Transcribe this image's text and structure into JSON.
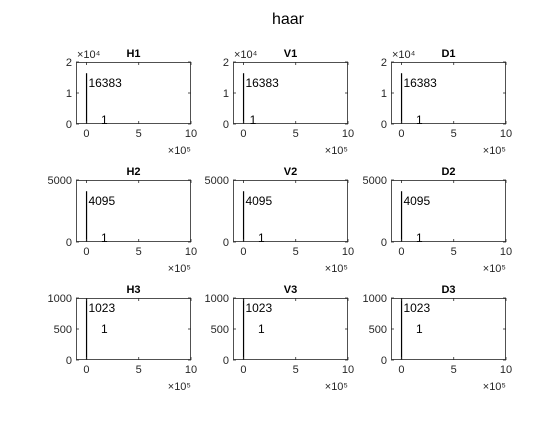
{
  "figure": {
    "title": "haar"
  },
  "style": {
    "axis_color": "#262626",
    "box_color": "#262626",
    "bar_color": "#000000",
    "background": "#ffffff"
  },
  "chart_data": [
    {
      "type": "bar",
      "title": "H1",
      "xlim": [
        -100000,
        1000000
      ],
      "ylim": [
        0,
        20000
      ],
      "xticks": [
        0,
        5,
        10
      ],
      "xexponent": "×10⁵",
      "yticks": [
        0,
        1,
        2
      ],
      "yexponent": "×10⁴",
      "bars": [
        {
          "x": 0,
          "value": 16383,
          "label": "16383"
        },
        {
          "x": 120000,
          "value": 1,
          "label": "1"
        }
      ]
    },
    {
      "type": "bar",
      "title": "V1",
      "xlim": [
        -100000,
        1000000
      ],
      "ylim": [
        0,
        20000
      ],
      "xticks": [
        0,
        5,
        10
      ],
      "xexponent": "×10⁵",
      "yticks": [
        0,
        1,
        2
      ],
      "yexponent": "×10⁴",
      "bars": [
        {
          "x": 0,
          "value": 16383,
          "label": "16383"
        },
        {
          "x": 40000,
          "value": 1,
          "label": "1"
        }
      ]
    },
    {
      "type": "bar",
      "title": "D1",
      "xlim": [
        -100000,
        1000000
      ],
      "ylim": [
        0,
        20000
      ],
      "xticks": [
        0,
        5,
        10
      ],
      "xexponent": "×10⁵",
      "yticks": [
        0,
        1,
        2
      ],
      "yexponent": "×10⁴",
      "bars": [
        {
          "x": 0,
          "value": 16383,
          "label": "16383"
        },
        {
          "x": 120000,
          "value": 1,
          "label": "1"
        }
      ]
    },
    {
      "type": "bar",
      "title": "H2",
      "xlim": [
        -100000,
        1000000
      ],
      "ylim": [
        0,
        5000
      ],
      "xticks": [
        0,
        5,
        10
      ],
      "xexponent": "×10⁵",
      "yticks": [
        0,
        5000
      ],
      "yexponent": "",
      "bars": [
        {
          "x": 0,
          "value": 4095,
          "label": "4095"
        },
        {
          "x": 120000,
          "value": 1,
          "label": "1"
        }
      ]
    },
    {
      "type": "bar",
      "title": "V2",
      "xlim": [
        -100000,
        1000000
      ],
      "ylim": [
        0,
        5000
      ],
      "xticks": [
        0,
        5,
        10
      ],
      "xexponent": "×10⁵",
      "yticks": [
        0,
        5000
      ],
      "yexponent": "",
      "bars": [
        {
          "x": 0,
          "value": 4095,
          "label": "4095"
        },
        {
          "x": 120000,
          "value": 1,
          "label": "1"
        }
      ]
    },
    {
      "type": "bar",
      "title": "D2",
      "xlim": [
        -100000,
        1000000
      ],
      "ylim": [
        0,
        5000
      ],
      "xticks": [
        0,
        5,
        10
      ],
      "xexponent": "×10⁵",
      "yticks": [
        0,
        5000
      ],
      "yexponent": "",
      "bars": [
        {
          "x": 0,
          "value": 4095,
          "label": "4095"
        },
        {
          "x": 120000,
          "value": 1,
          "label": "1"
        }
      ]
    },
    {
      "type": "bar",
      "title": "H3",
      "xlim": [
        -100000,
        1000000
      ],
      "ylim": [
        0,
        1000
      ],
      "xticks": [
        0,
        5,
        10
      ],
      "xexponent": "×10⁵",
      "yticks": [
        0,
        500,
        1000
      ],
      "yexponent": "",
      "bars": [
        {
          "x": 0,
          "value": 1023,
          "label": "1023"
        },
        {
          "x": 120000,
          "value": 1,
          "label": "1"
        }
      ]
    },
    {
      "type": "bar",
      "title": "V3",
      "xlim": [
        -100000,
        1000000
      ],
      "ylim": [
        0,
        1000
      ],
      "xticks": [
        0,
        5,
        10
      ],
      "xexponent": "×10⁵",
      "yticks": [
        0,
        500,
        1000
      ],
      "yexponent": "",
      "bars": [
        {
          "x": 0,
          "value": 1023,
          "label": "1023"
        },
        {
          "x": 120000,
          "value": 1,
          "label": "1"
        }
      ]
    },
    {
      "type": "bar",
      "title": "D3",
      "xlim": [
        -100000,
        1000000
      ],
      "ylim": [
        0,
        1000
      ],
      "xticks": [
        0,
        5,
        10
      ],
      "xexponent": "×10⁵",
      "yticks": [
        0,
        500,
        1000
      ],
      "yexponent": "",
      "bars": [
        {
          "x": 0,
          "value": 1023,
          "label": "1023"
        },
        {
          "x": 120000,
          "value": 1,
          "label": "1"
        }
      ]
    }
  ]
}
